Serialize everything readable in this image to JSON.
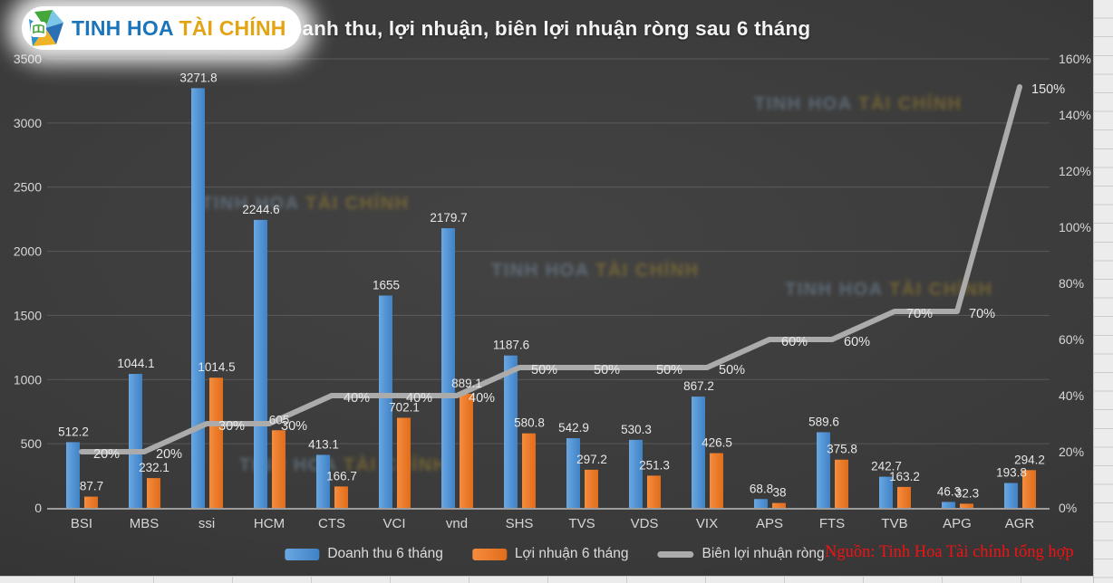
{
  "logo": {
    "text_primary": "TINH HOA",
    "text_secondary": "TÀI CHÍNH",
    "icon": "pinwheel-book-logo"
  },
  "title": "Doanh thu, lợi nhuận, biên lợi nhuận ròng sau 6 tháng",
  "watermark": {
    "text_primary": "TINH HOA",
    "text_secondary": "TÀI CHÍNH"
  },
  "source_note": "Nguồn: Tinh Hoa Tài chính tổng  hợp",
  "colors": {
    "revenue_bar": "#4f94d8",
    "profit_bar": "#ed7d31",
    "margin_line": "#ababab",
    "background_dark": "#3a3a3a",
    "label_text": "#e8e8e8",
    "source_red": "#f01212"
  },
  "chart_data": {
    "type": "bar",
    "subtype": "combo-bar-line",
    "title": "Doanh thu, lợi nhuận, biên lợi nhuận ròng sau 6 tháng",
    "grid": true,
    "legend_position": "bottom",
    "categories": [
      "BSI",
      "MBS",
      "ssi",
      "HCM",
      "CTS",
      "VCI",
      "vnd",
      "SHS",
      "TVS",
      "VDS",
      "VIX",
      "APS",
      "FTS",
      "TVB",
      "APG",
      "AGR"
    ],
    "series": [
      {
        "name": "Doanh thu 6 tháng",
        "type": "bar",
        "color": "#4f94d8",
        "values": [
          512.2,
          1044.1,
          3271.8,
          2244.6,
          413.1,
          1655,
          2179.7,
          1187.6,
          542.9,
          530.3,
          867.2,
          68.8,
          589.6,
          242.7,
          46.3,
          193.8
        ],
        "labels": [
          "512.2",
          "1044.1",
          "3271.8",
          "2244.6",
          "413.1",
          "1655",
          "2179.7",
          "1187.6",
          "542.9",
          "530.3",
          "867.2",
          "68.8",
          "589.6",
          "242.7",
          "46.3",
          "193.8"
        ]
      },
      {
        "name": "Lợi nhuận 6 tháng",
        "type": "bar",
        "color": "#ed7d31",
        "values": [
          87.7,
          232.1,
          1014.5,
          605,
          166.7,
          702.1,
          889.1,
          580.8,
          297.2,
          251.3,
          426.5,
          38,
          375.8,
          163.2,
          32.3,
          294.2
        ],
        "labels": [
          "87.7",
          "232.1",
          "1014.5",
          "605",
          "166.7",
          "702.1",
          "889.1",
          "580.8",
          "297.2",
          "251.3",
          "426.5",
          "38",
          "375.8",
          "163.2",
          "32.3",
          "294.2"
        ]
      },
      {
        "name": "Biên lợi nhuận ròng",
        "type": "line",
        "axis": "right",
        "color": "#ababab",
        "values": [
          20,
          20,
          30,
          30,
          40,
          40,
          40,
          50,
          50,
          50,
          50,
          60,
          60,
          70,
          70,
          150
        ],
        "labels": [
          "20%",
          "20%",
          "30%",
          "30%",
          "40%",
          "40%",
          "40%",
          "50%",
          "50%",
          "50%",
          "50%",
          "60%",
          "60%",
          "70%",
          "70%",
          "150%"
        ]
      }
    ],
    "left_axis": {
      "min": 0,
      "max": 3500,
      "step": 500,
      "ticks": [
        "3500",
        "3000",
        "2500",
        "2000",
        "1500",
        "1000",
        "500",
        "0"
      ]
    },
    "right_axis": {
      "min": 0,
      "max": 160,
      "step": 20,
      "ticks": [
        "160%",
        "140%",
        "120%",
        "100%",
        "80%",
        "60%",
        "40%",
        "20%",
        "0%"
      ]
    }
  }
}
